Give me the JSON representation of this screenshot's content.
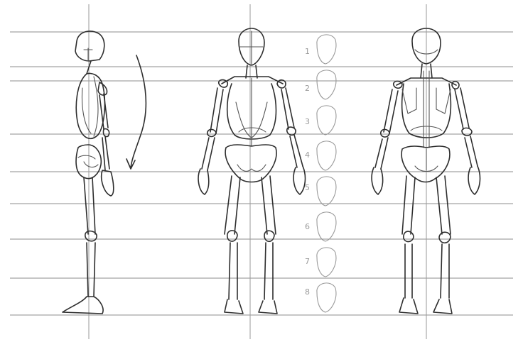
{
  "image": {
    "kind": "pencil anatomy sketch",
    "views": [
      "side",
      "front",
      "back"
    ],
    "colors": {
      "background": "#ffffff",
      "ink": "#2e2e2e",
      "guide": "#8c8c8c",
      "faint": "#9a9a9a"
    }
  },
  "head_scale": {
    "labels": [
      "1",
      "2",
      "3",
      "4",
      "5",
      "6",
      "7",
      "8"
    ]
  }
}
